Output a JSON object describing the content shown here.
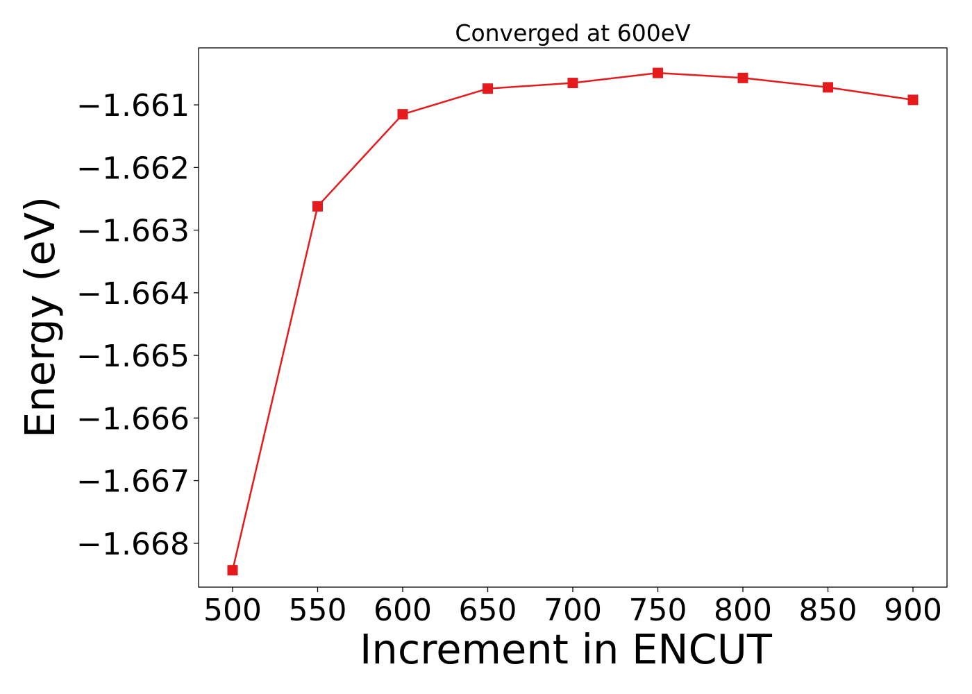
{
  "chart_data": {
    "type": "line",
    "title": "Converged at 600eV",
    "xlabel": "Increment in ENCUT",
    "ylabel": "Energy (eV)",
    "x": [
      500,
      550,
      600,
      650,
      700,
      750,
      800,
      850,
      900
    ],
    "series": [
      {
        "values": [
          -1.66843,
          -1.66262,
          -1.66115,
          -1.66074,
          -1.66065,
          -1.66049,
          -1.66057,
          -1.66072,
          -1.66092
        ],
        "color": "#e41a1c",
        "marker": "square"
      }
    ],
    "xticks": [
      "500",
      "550",
      "600",
      "650",
      "700",
      "750",
      "800",
      "850",
      "900"
    ],
    "yticks": [
      "−1.668",
      "−1.667",
      "−1.666",
      "−1.665",
      "−1.664",
      "−1.663",
      "−1.662",
      "−1.661"
    ],
    "ytick_values": [
      -1.668,
      -1.667,
      -1.666,
      -1.665,
      -1.664,
      -1.663,
      -1.662,
      -1.661
    ],
    "xlim": [
      480,
      920
    ],
    "ylim": [
      -1.6687,
      -1.66009
    ],
    "grid": false,
    "legend": "none"
  }
}
